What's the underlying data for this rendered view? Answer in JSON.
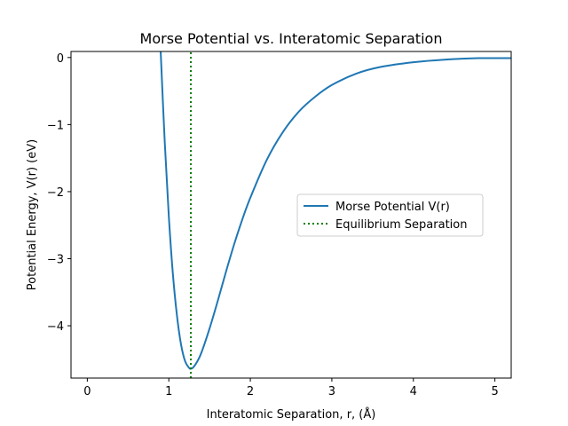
{
  "chart_data": {
    "type": "line",
    "title": "Morse Potential vs. Interatomic Separation",
    "xlabel": "Interatomic Separation, r, (Å)",
    "ylabel": "Potential Energy, V(r) (eV)",
    "xlim": [
      -0.2,
      5.2
    ],
    "ylim": [
      -4.78,
      0.09
    ],
    "xticks": [
      0,
      1,
      2,
      3,
      4,
      5
    ],
    "yticks": [
      0,
      -1,
      -2,
      -3,
      -4
    ],
    "xtick_labels": [
      "0",
      "1",
      "2",
      "3",
      "4",
      "5"
    ],
    "ytick_labels": [
      "0",
      "−1",
      "−2",
      "−3",
      "−4"
    ],
    "grid": false,
    "legend_position": "center-right",
    "series": [
      {
        "name": "Morse Potential V(r)",
        "style": "solid",
        "color": "#1f77b4",
        "x": [
          0.9,
          0.95,
          1.0,
          1.05,
          1.1,
          1.15,
          1.2,
          1.25,
          1.27,
          1.3,
          1.35,
          1.4,
          1.5,
          1.6,
          1.7,
          1.8,
          1.9,
          2.0,
          2.2,
          2.4,
          2.6,
          2.8,
          3.0,
          3.3,
          3.6,
          4.0,
          4.4,
          4.8,
          5.2
        ],
        "y": [
          0.09,
          -1.26,
          -2.37,
          -3.23,
          -3.85,
          -4.28,
          -4.53,
          -4.63,
          -4.64,
          -4.62,
          -4.53,
          -4.4,
          -4.04,
          -3.63,
          -3.2,
          -2.79,
          -2.42,
          -2.09,
          -1.53,
          -1.11,
          -0.8,
          -0.58,
          -0.41,
          -0.24,
          -0.14,
          -0.07,
          -0.03,
          -0.01,
          -0.01
        ]
      },
      {
        "name": "Equilibrium Separation",
        "style": "dotted",
        "color": "#008000",
        "x": [
          1.27,
          1.27
        ],
        "y": [
          -4.78,
          0.09
        ]
      }
    ]
  }
}
